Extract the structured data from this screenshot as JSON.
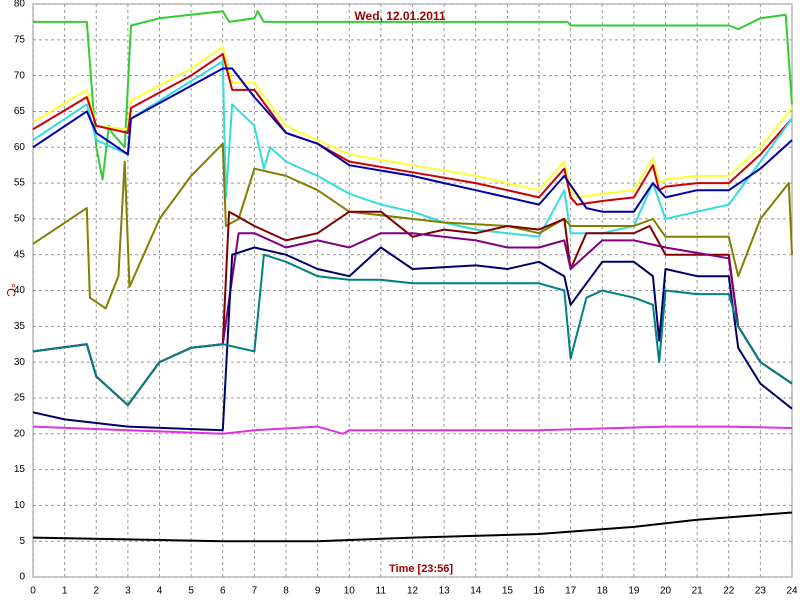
{
  "chart_data": {
    "type": "line",
    "title": "Wed, 12.01.2011",
    "xlabel": "Time [23:56]",
    "ylabel": "°C",
    "xlim": [
      0,
      24
    ],
    "ylim": [
      0,
      80
    ],
    "xticks": [
      0,
      1,
      2,
      3,
      4,
      5,
      6,
      7,
      8,
      9,
      10,
      11,
      12,
      13,
      14,
      15,
      16,
      17,
      18,
      19,
      20,
      21,
      22,
      23,
      24
    ],
    "yticks": [
      0,
      5,
      10,
      15,
      20,
      25,
      30,
      35,
      40,
      45,
      50,
      55,
      60,
      65,
      70,
      75,
      80
    ],
    "grid": true,
    "series": [
      {
        "color": "#33cc33",
        "x": [
          0,
          1,
          1.7,
          2,
          2.2,
          2.4,
          2.5,
          2.9,
          3.1,
          4,
          5,
          6,
          6.2,
          7,
          7.1,
          7.3,
          8,
          10,
          12,
          14,
          16,
          16.9,
          17,
          18,
          20,
          22,
          22.3,
          23,
          23.8,
          24
        ],
        "values": [
          77.5,
          77.5,
          77.5,
          60,
          55.5,
          63,
          62,
          60,
          77,
          78,
          78.5,
          79,
          77.5,
          78,
          79,
          77.5,
          77.5,
          77.5,
          77.5,
          77.5,
          77.5,
          77.5,
          77,
          77,
          77,
          77,
          76.5,
          78,
          78.5,
          66
        ]
      },
      {
        "color": "#ffff33",
        "x": [
          0,
          1.7,
          2,
          3,
          3.1,
          5,
          6,
          6.3,
          7,
          8,
          9,
          10,
          12,
          14,
          15,
          16,
          16.8,
          17,
          17.2,
          18,
          19,
          19.6,
          19.8,
          20,
          21,
          22,
          23,
          24
        ],
        "values": [
          63.5,
          68,
          63,
          62.5,
          66.5,
          71,
          74,
          69,
          69,
          63,
          61,
          59,
          57.5,
          56,
          55,
          54,
          58,
          54,
          53,
          53.5,
          54,
          58.5,
          55,
          55.5,
          56,
          56,
          60,
          65.5
        ]
      },
      {
        "color": "#cc0000",
        "x": [
          0,
          1.7,
          2,
          3,
          3.1,
          5,
          6,
          6.3,
          7,
          8,
          9,
          10,
          12,
          14,
          15,
          16,
          16.8,
          17,
          17.2,
          18,
          19,
          19.6,
          19.8,
          20,
          21,
          22,
          23,
          24
        ],
        "values": [
          62.5,
          67,
          63,
          62,
          65.5,
          70,
          73,
          68,
          68,
          62,
          60.5,
          58,
          56.5,
          55,
          54,
          53,
          57,
          53,
          52,
          52.5,
          53,
          57.5,
          54,
          54.5,
          55,
          55,
          59,
          64
        ]
      },
      {
        "color": "#33dddd",
        "x": [
          0,
          1.7,
          2,
          3,
          3.1,
          6,
          6.1,
          6.3,
          7,
          7.3,
          7.5,
          8,
          9,
          10,
          11,
          12,
          13,
          14,
          15,
          16,
          16.8,
          17,
          18,
          19,
          19.6,
          20,
          21,
          22,
          23,
          24
        ],
        "values": [
          61,
          66,
          61,
          59,
          64,
          72,
          53,
          66,
          63,
          57,
          60,
          58,
          56,
          53.5,
          52,
          51,
          49.5,
          48.5,
          48,
          47.5,
          54,
          48,
          48,
          49,
          55,
          50,
          51,
          52,
          58,
          64
        ]
      },
      {
        "color": "#0000aa",
        "x": [
          0,
          1.7,
          2,
          3,
          3.1,
          6,
          6.3,
          7,
          8,
          9,
          10,
          12,
          13,
          14,
          15,
          16,
          16.8,
          17.5,
          18,
          19,
          19.6,
          20,
          21,
          22,
          23,
          24
        ],
        "values": [
          60,
          65,
          62,
          59,
          64,
          71,
          71,
          67,
          62,
          60.5,
          57.5,
          56,
          55,
          54,
          53,
          52,
          56,
          51.5,
          51,
          51,
          55,
          53,
          54,
          54,
          57,
          61
        ]
      },
      {
        "color": "#808000",
        "x": [
          0,
          1.7,
          1.8,
          2.3,
          2.7,
          2.9,
          3.05,
          4,
          5,
          6,
          6.1,
          6.5,
          7,
          8,
          9,
          10,
          11,
          13,
          15,
          16,
          16.8,
          17,
          19,
          19.6,
          20,
          22,
          22.3,
          23,
          23.9,
          24
        ],
        "values": [
          46.5,
          51.5,
          39,
          37.5,
          42,
          58,
          40.5,
          50,
          56,
          60.5,
          49,
          50,
          57,
          56,
          54,
          51,
          50.5,
          49.5,
          49,
          48,
          50,
          49,
          49,
          50,
          47.5,
          47.5,
          42,
          50,
          55,
          45
        ]
      },
      {
        "color": "#800000",
        "x": [
          0,
          1.7,
          2,
          3,
          4,
          5,
          6,
          6.2,
          7,
          8,
          9,
          10,
          11,
          12,
          13,
          14,
          15,
          16,
          16.8,
          17,
          17.5,
          19,
          19.5,
          20,
          22,
          22.3,
          23,
          24
        ],
        "values": [
          31.5,
          32.5,
          28,
          24,
          30,
          32,
          32.5,
          51,
          49,
          47,
          48,
          51,
          51,
          47.5,
          48.5,
          48,
          49,
          48.5,
          50,
          43,
          48,
          48,
          49,
          45,
          45,
          35,
          30,
          27
        ]
      },
      {
        "color": "#800080",
        "x": [
          0,
          1.7,
          2,
          3,
          4,
          5,
          6,
          6.5,
          7,
          8,
          9,
          10,
          11,
          12,
          14,
          15,
          16,
          16.8,
          17,
          18,
          19,
          20,
          22,
          22.3,
          23,
          24
        ],
        "values": [
          31.5,
          32.5,
          28,
          24,
          30,
          32,
          32.5,
          48,
          48,
          46,
          47,
          46,
          48,
          48,
          47,
          46,
          46,
          47,
          43,
          47,
          47,
          46,
          44.5,
          35,
          30,
          27
        ]
      },
      {
        "color": "#000066",
        "x": [
          0,
          1,
          3,
          6,
          6.3,
          7,
          8,
          9,
          10,
          11,
          12,
          14,
          15,
          16,
          16.8,
          17,
          18,
          19,
          19.6,
          19.8,
          20,
          21,
          22,
          22.3,
          23,
          24
        ],
        "values": [
          23,
          22,
          21,
          20.5,
          45,
          46,
          45,
          43,
          42,
          46,
          43,
          43.5,
          43,
          44,
          42,
          38,
          44,
          44,
          42,
          33,
          43,
          42,
          42,
          32,
          27,
          23.5
        ]
      },
      {
        "color": "#008080",
        "x": [
          0,
          1.7,
          2,
          3,
          4,
          5,
          6,
          7,
          7.3,
          8,
          9,
          10,
          11,
          12,
          16,
          16.8,
          17,
          17.5,
          18,
          19,
          19.6,
          19.8,
          20,
          21,
          22,
          22.3,
          23,
          24
        ],
        "values": [
          31.5,
          32.5,
          28,
          24,
          30,
          32,
          32.5,
          31.5,
          45,
          44,
          42,
          41.5,
          41.5,
          41,
          41,
          40,
          30.5,
          39,
          40,
          39,
          38,
          30,
          40,
          39.5,
          39.5,
          35,
          30,
          27
        ]
      },
      {
        "color": "#dd33dd",
        "x": [
          0,
          3,
          6,
          7,
          9,
          9.8,
          10,
          16,
          20,
          22,
          24
        ],
        "values": [
          21,
          20.5,
          20,
          20.5,
          21,
          20,
          20.5,
          20.5,
          21,
          21,
          20.8
        ]
      },
      {
        "color": "#000000",
        "x": [
          0,
          6,
          9,
          12,
          16,
          19,
          21,
          24
        ],
        "values": [
          5.5,
          5,
          5,
          5.5,
          6,
          7,
          8,
          9
        ]
      }
    ]
  }
}
